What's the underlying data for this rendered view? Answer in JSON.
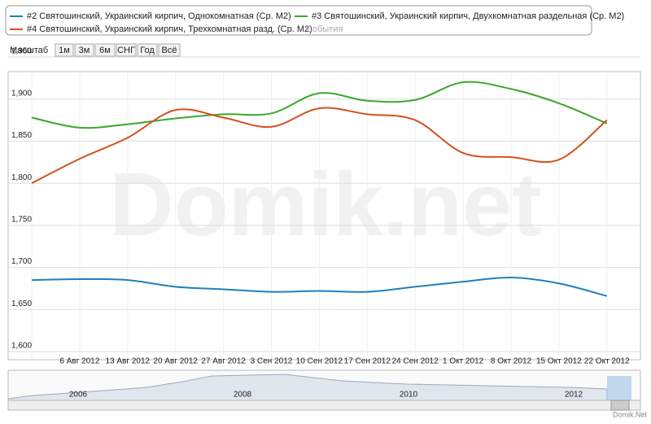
{
  "chart_data": {
    "type": "line",
    "categories": [
      null,
      "6 Авг 2012",
      "13 Авг 2012",
      "20 Авг 2012",
      "27 Авг 2012",
      "3 Сен 2012",
      "10 Сен 2012",
      "17 Сен 2012",
      "24 Сен 2012",
      "1 Окт 2012",
      "8 Окт 2012",
      "15 Окт 2012",
      "22 Окт 2012"
    ],
    "series": [
      {
        "name": "#2 Святошинский, Украинский кирпич, Однокомнатная (Ср. М2)",
        "color": "#1f7fc0",
        "values": [
          1685,
          1686,
          1685,
          1677,
          1674,
          1671,
          1672,
          1671,
          1677,
          1683,
          1688,
          1681,
          1666
        ]
      },
      {
        "name": "#3 Святошинский, Украинский кирпич, Двухкомнатная раздельная (Ср. М2)",
        "color": "#3aa82a",
        "values": [
          1878,
          1866,
          1870,
          1877,
          1882,
          1883,
          1907,
          1898,
          1899,
          1920,
          1912,
          1895,
          1871
        ]
      },
      {
        "name": "#4 Святошинский, Украинский кирпич, Трехкомнатная разд. (Ср. М2)",
        "color": "#d4501e",
        "values": [
          1800,
          1829,
          1854,
          1887,
          1878,
          1867,
          1889,
          1882,
          1875,
          1836,
          1831,
          1828,
          1875
        ]
      }
    ],
    "events_label": "События",
    "ylim": [
      1600,
      1950
    ],
    "yticks": [
      {
        "value": 1600,
        "label": "1,600"
      },
      {
        "value": 1650,
        "label": "1,650"
      },
      {
        "value": 1700,
        "label": "1,700"
      },
      {
        "value": 1750,
        "label": "1,750"
      },
      {
        "value": 1800,
        "label": "1,800"
      },
      {
        "value": 1850,
        "label": "1,850"
      },
      {
        "value": 1900,
        "label": "1,900"
      },
      {
        "value": 1950,
        "label": "1,950"
      }
    ],
    "grid": true,
    "watermark": "Domik.net",
    "range_selector": {
      "label": "Масштаб",
      "buttons": [
        "1м",
        "3м",
        "6м",
        "СНГ",
        "Год",
        "Всё"
      ]
    },
    "navigator_labels": [
      "2006",
      "2008",
      "2010",
      "2012"
    ],
    "credit": "Domik.Net"
  }
}
